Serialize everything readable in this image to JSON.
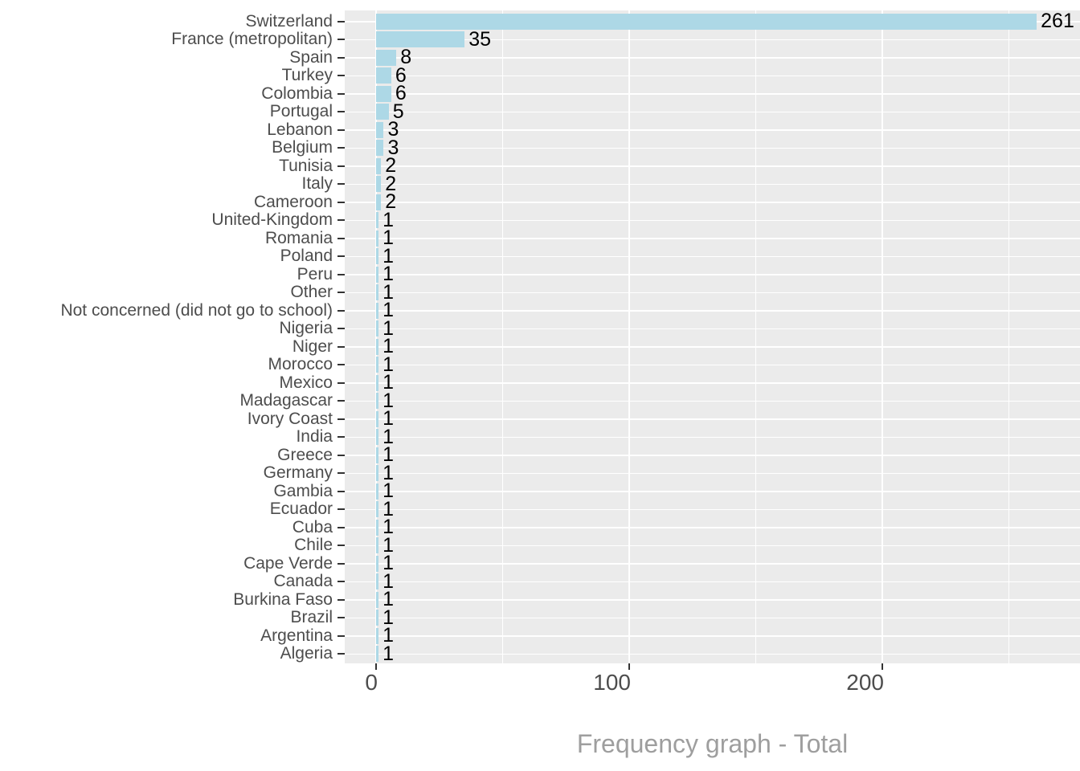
{
  "chart_data": {
    "type": "bar",
    "orientation": "horizontal",
    "title": "Frequency graph - Total",
    "xlabel": "",
    "ylabel": "",
    "grid": true,
    "legend": false,
    "categories": [
      "Switzerland",
      "France (metropolitan)",
      "Spain",
      "Turkey",
      "Colombia",
      "Portugal",
      "Lebanon",
      "Belgium",
      "Tunisia",
      "Italy",
      "Cameroon",
      "United-Kingdom",
      "Romania",
      "Poland",
      "Peru",
      "Other",
      "Not concerned (did not go to school)",
      "Nigeria",
      "Niger",
      "Morocco",
      "Mexico",
      "Madagascar",
      "Ivory Coast",
      "India",
      "Greece",
      "Germany",
      "Gambia",
      "Ecuador",
      "Cuba",
      "Chile",
      "Cape Verde",
      "Canada",
      "Burkina Faso",
      "Brazil",
      "Argentina",
      "Algeria"
    ],
    "values": [
      261,
      35,
      8,
      6,
      6,
      5,
      3,
      3,
      2,
      2,
      2,
      1,
      1,
      1,
      1,
      1,
      1,
      1,
      1,
      1,
      1,
      1,
      1,
      1,
      1,
      1,
      1,
      1,
      1,
      1,
      1,
      1,
      1,
      1,
      1,
      1
    ],
    "value_labels_shown": true,
    "x_axis": {
      "ticks": [
        0,
        100,
        200
      ],
      "minor_ticks": [
        50,
        150,
        250
      ],
      "range": [
        -13,
        290
      ]
    }
  },
  "colors": {
    "bar_fill": "#ADD8E6",
    "panel_bg": "#EBEBEB",
    "gridline": "#FFFFFF",
    "axis_text": "#4D4D4D",
    "value_label": "#000000",
    "tick_mark": "#333333",
    "title_text": "#9E9E9E"
  }
}
